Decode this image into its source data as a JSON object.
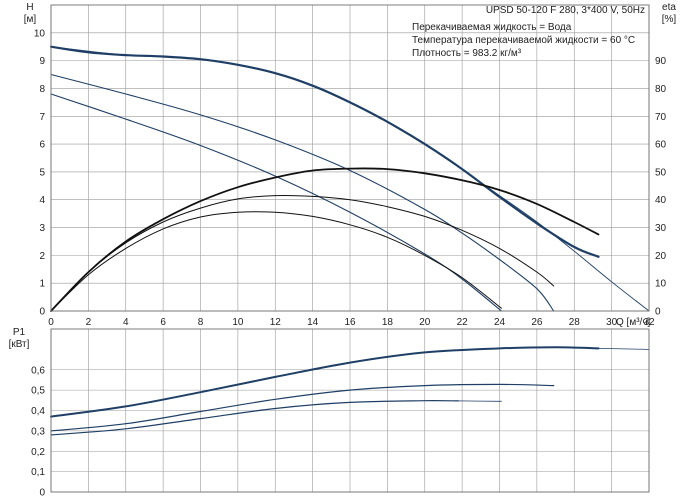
{
  "title": "UPSD 50-120 F 280, 3*400 V, 50Hz",
  "info_lines": [
    "Перекачиваемая жидкость = Вода",
    "Температура перекачиваемой жидкости = 60 °C",
    "Плотность = 983.2 кг/м³"
  ],
  "colors": {
    "blue": "#1f3f66",
    "dark": "#111111",
    "grid": "#9a9a9a",
    "frame": "#6e6e6e"
  },
  "chart_data": [
    {
      "type": "line",
      "name": "head-efficiency",
      "xlabel": "Q [м³/ч]",
      "ylabel": "H\n[м]",
      "y2label": "eta\n[%]",
      "xlim": [
        0,
        32
      ],
      "ylim": [
        0,
        11
      ],
      "y2lim": [
        0,
        110
      ],
      "xticks": [
        0,
        2,
        4,
        6,
        8,
        10,
        12,
        14,
        16,
        18,
        20,
        22,
        24,
        26,
        28,
        30,
        32
      ],
      "yticks": [
        0,
        1,
        2,
        3,
        4,
        5,
        6,
        7,
        8,
        9,
        10
      ],
      "y2ticks": [
        0,
        10,
        20,
        30,
        40,
        50,
        60,
        70,
        80,
        90
      ],
      "grid": true,
      "head_series": [
        {
          "x": [
            0,
            2,
            4,
            6,
            8,
            10,
            12,
            14,
            16,
            18,
            20,
            22,
            24,
            26,
            28,
            29.3
          ],
          "y": [
            9.5,
            9.3,
            9.2,
            9.15,
            9.05,
            8.85,
            8.55,
            8.1,
            7.5,
            6.8,
            6.0,
            5.1,
            4.1,
            3.15,
            2.3,
            1.95
          ],
          "color": "#1f3f66",
          "width": 2.2
        },
        {
          "x": [
            0,
            4,
            8,
            12,
            16,
            20,
            24,
            26,
            28,
            30,
            32
          ],
          "y": [
            9.5,
            9.2,
            9.05,
            8.55,
            7.5,
            6.0,
            4.15,
            3.2,
            2.15,
            1.05,
            0
          ],
          "color": "#1f3f66",
          "width": 0.9
        },
        {
          "x": [
            0,
            4,
            8,
            12,
            16,
            20,
            22,
            24,
            26,
            26.9
          ],
          "y": [
            8.5,
            7.8,
            7.05,
            6.15,
            5.05,
            3.65,
            2.8,
            1.85,
            0.8,
            0
          ],
          "color": "#1f3f66",
          "width": 1.1
        },
        {
          "x": [
            0,
            4,
            8,
            12,
            16,
            20,
            22,
            24.1
          ],
          "y": [
            7.8,
            6.9,
            5.95,
            4.85,
            3.55,
            2.05,
            1.15,
            0
          ],
          "color": "#1f3f66",
          "width": 1.1
        }
      ],
      "eta_series": [
        {
          "x": [
            0,
            2,
            4,
            6,
            8,
            10,
            12,
            14,
            16,
            18,
            20,
            22,
            24,
            26,
            28,
            29.3
          ],
          "y": [
            0,
            14,
            25,
            33,
            39.5,
            44.5,
            48,
            50.5,
            51.2,
            51,
            49.5,
            47,
            43.5,
            38.5,
            32,
            27.5
          ],
          "color": "#111111",
          "width": 1.8
        },
        {
          "x": [
            0,
            2,
            4,
            6,
            8,
            10,
            12,
            14,
            16,
            18,
            20,
            22,
            24,
            26,
            26.9
          ],
          "y": [
            0,
            14,
            24.5,
            32,
            37,
            40.3,
            41.5,
            41.2,
            40,
            37.5,
            34,
            29,
            22.5,
            14,
            9
          ],
          "color": "#111111",
          "width": 1.0
        },
        {
          "x": [
            0,
            2,
            4,
            6,
            8,
            10,
            12,
            14,
            16,
            18,
            20,
            22,
            24.1
          ],
          "y": [
            0,
            13,
            22.5,
            29.5,
            33.8,
            35.5,
            35.5,
            34,
            31,
            26.5,
            20,
            12,
            1
          ],
          "color": "#111111",
          "width": 1.0
        }
      ]
    },
    {
      "type": "line",
      "name": "power",
      "xlabel": "",
      "ylabel": "P1\n[кВт]",
      "xlim": [
        0,
        32
      ],
      "ylim": [
        0,
        0.8
      ],
      "yticks": [
        0,
        0.1,
        0.2,
        0.3,
        0.4,
        0.5,
        0.6
      ],
      "ytick_labels": [
        "0",
        "0,1",
        "0,2",
        "0,3",
        "0,4",
        "0,5",
        "0,6"
      ],
      "grid": true,
      "series": [
        {
          "x": [
            0,
            4,
            8,
            12,
            16,
            20,
            24,
            27,
            29.3
          ],
          "y": [
            0.37,
            0.42,
            0.49,
            0.565,
            0.635,
            0.685,
            0.705,
            0.71,
            0.705
          ],
          "color": "#1f3f66",
          "width": 2.0
        },
        {
          "x": [
            29.3,
            32
          ],
          "y": [
            0.705,
            0.7
          ],
          "color": "#1f3f66",
          "width": 0.8
        },
        {
          "x": [
            0,
            4,
            8,
            12,
            16,
            20,
            24,
            26.9
          ],
          "y": [
            0.3,
            0.335,
            0.395,
            0.455,
            0.5,
            0.522,
            0.528,
            0.522
          ],
          "color": "#1f3f66",
          "width": 1.2
        },
        {
          "x": [
            0,
            4,
            8,
            12,
            16,
            20,
            21.8
          ],
          "y": [
            0.28,
            0.31,
            0.36,
            0.41,
            0.44,
            0.448,
            0.447
          ],
          "color": "#1f3f66",
          "width": 1.2
        },
        {
          "x": [
            21.8,
            24.1
          ],
          "y": [
            0.447,
            0.445
          ],
          "color": "#1f3f66",
          "width": 0.8
        }
      ]
    }
  ]
}
